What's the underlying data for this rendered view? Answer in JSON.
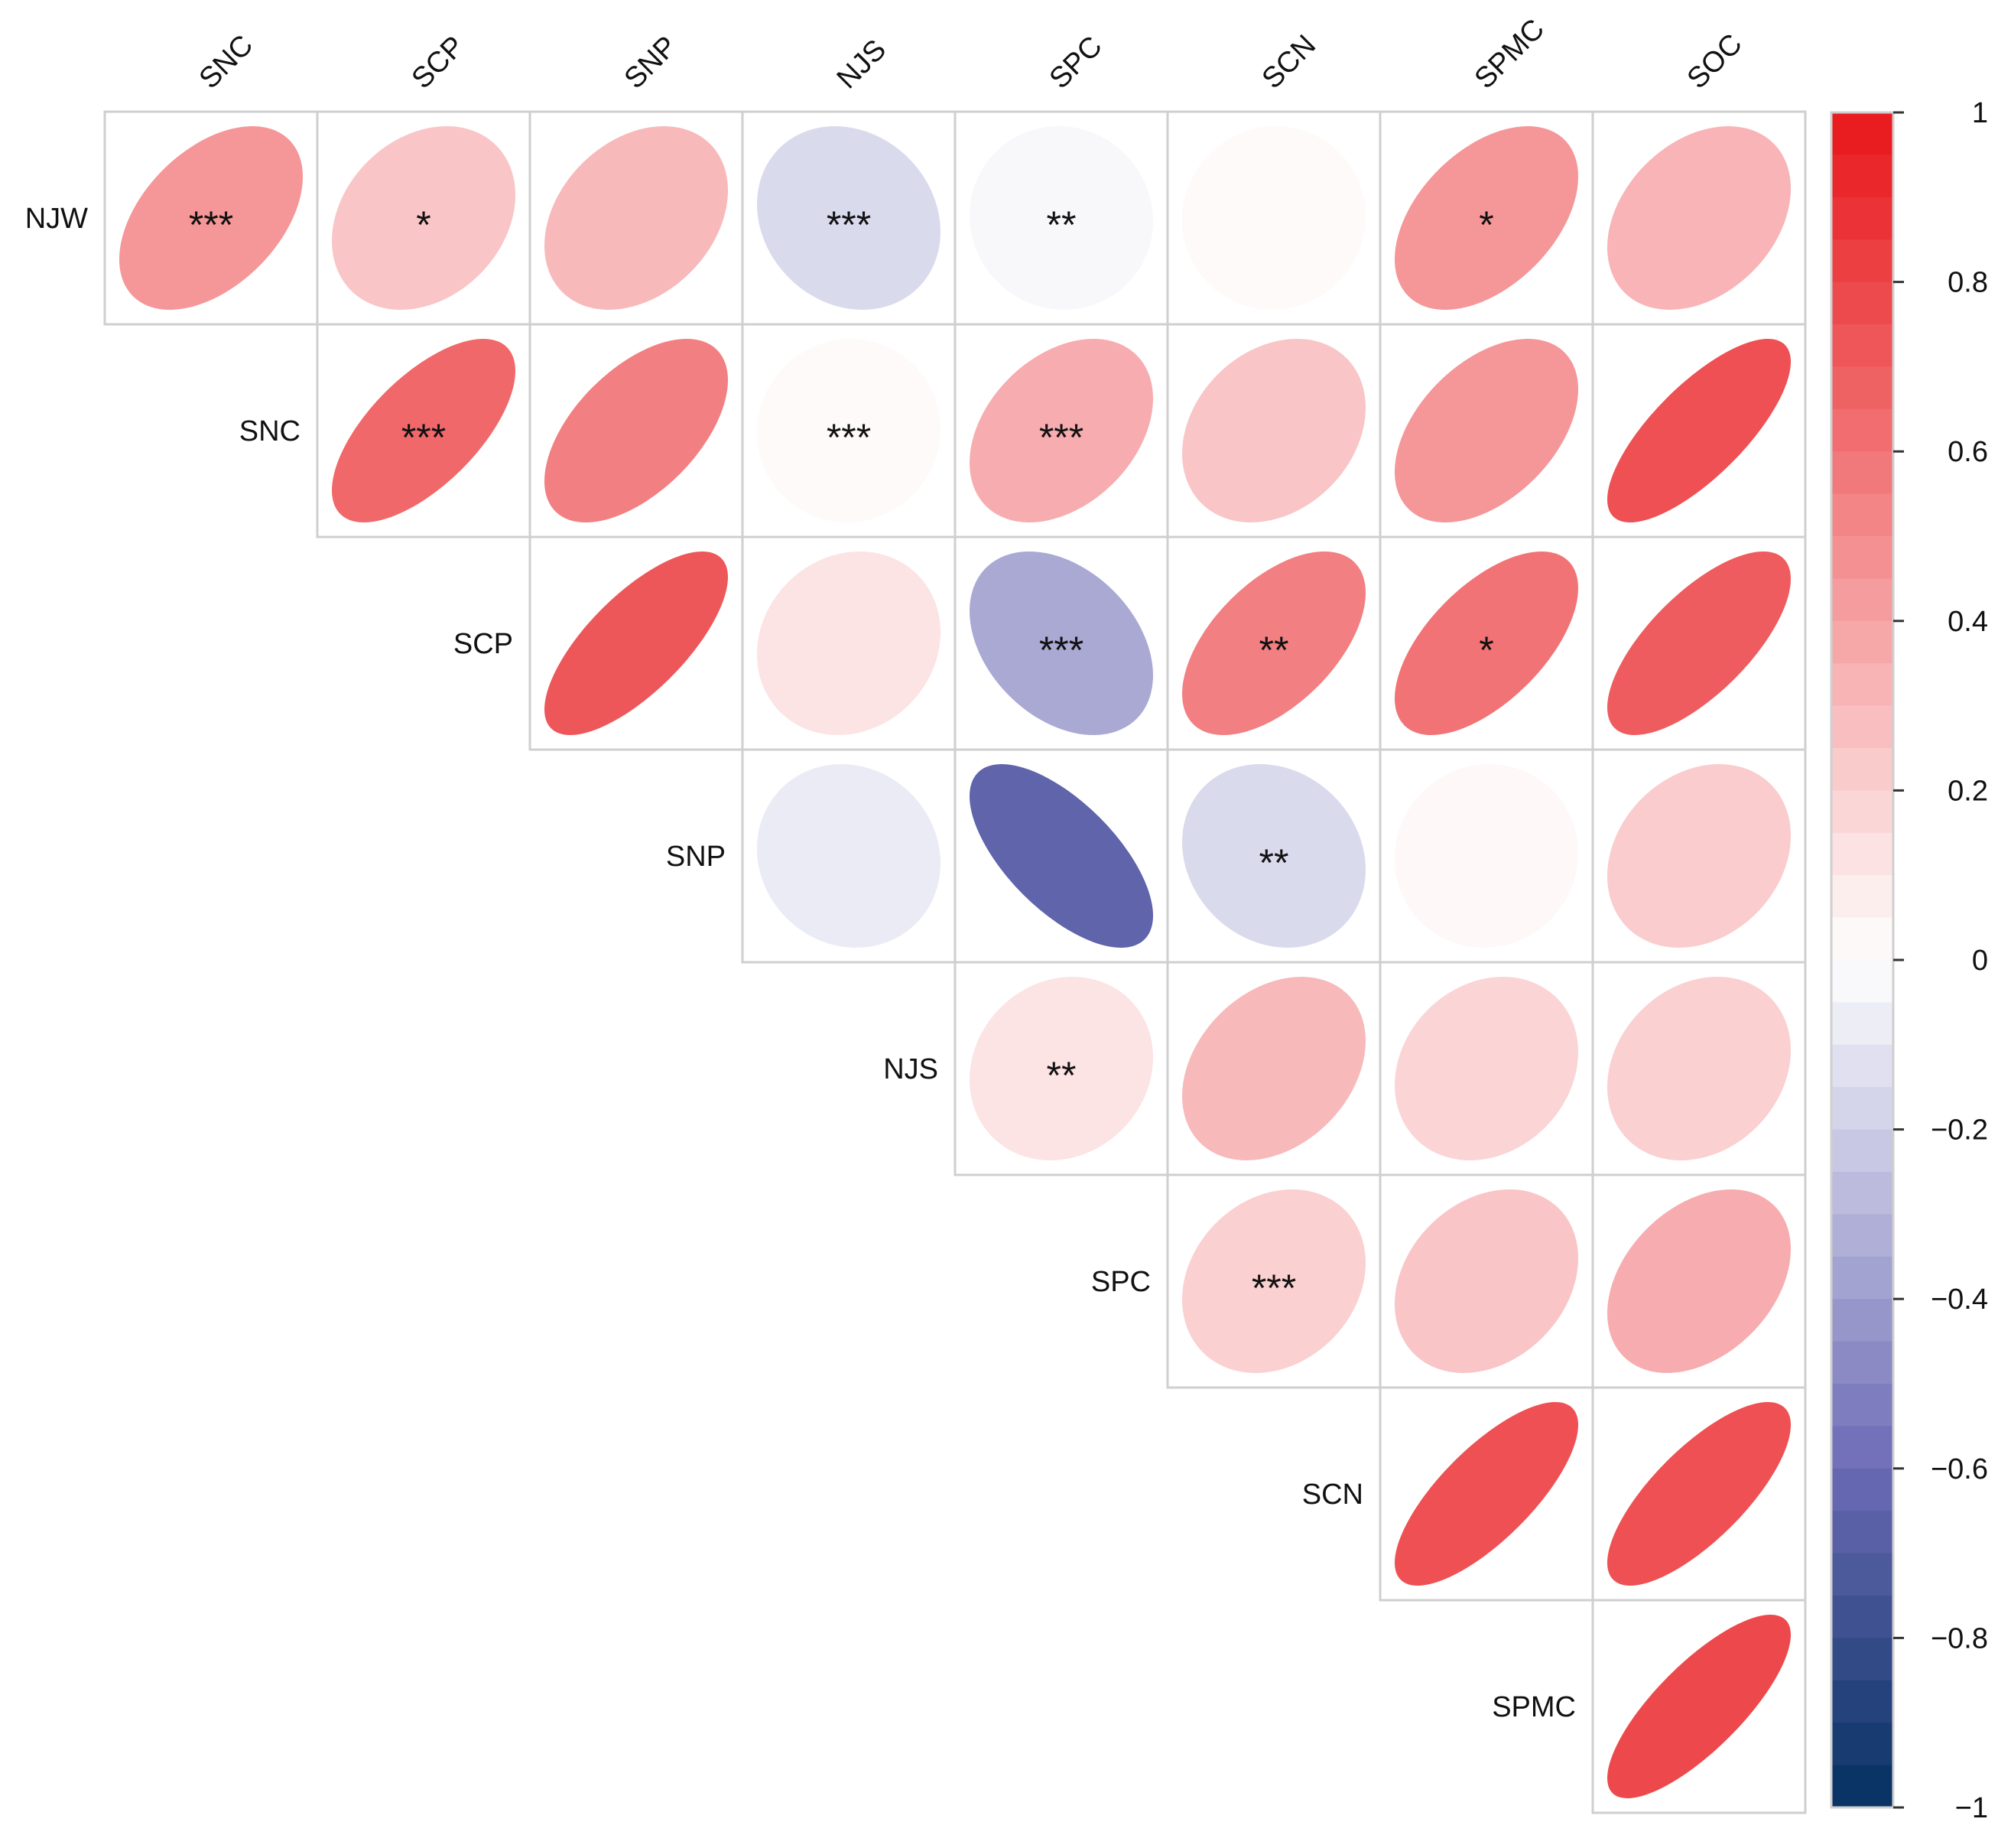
{
  "chart_data": {
    "type": "heatmap",
    "subtype": "correlation-ellipse-upper",
    "row_variables": [
      "NJW",
      "SNC",
      "SCP",
      "SNP",
      "NJS",
      "SPC",
      "SCN",
      "SPMC"
    ],
    "column_variables": [
      "SNC",
      "SCP",
      "SNP",
      "NJS",
      "SPC",
      "SCN",
      "SPMC",
      "SOC"
    ],
    "cells": [
      {
        "row": "NJW",
        "col": "SNC",
        "r": 0.45,
        "sig": "***"
      },
      {
        "row": "NJW",
        "col": "SCP",
        "r": 0.25,
        "sig": "*"
      },
      {
        "row": "NJW",
        "col": "SNP",
        "r": 0.3,
        "sig": ""
      },
      {
        "row": "NJW",
        "col": "NJS",
        "r": -0.15,
        "sig": "***"
      },
      {
        "row": "NJW",
        "col": "SPC",
        "r": -0.03,
        "sig": "**"
      },
      {
        "row": "NJW",
        "col": "SCN",
        "r": 0.02,
        "sig": ""
      },
      {
        "row": "NJW",
        "col": "SPMC",
        "r": 0.45,
        "sig": "*"
      },
      {
        "row": "NJW",
        "col": "SOC",
        "r": 0.32,
        "sig": ""
      },
      {
        "row": "SNC",
        "col": "SCP",
        "r": 0.65,
        "sig": "***"
      },
      {
        "row": "SNC",
        "col": "SNP",
        "r": 0.55,
        "sig": ""
      },
      {
        "row": "SNC",
        "col": "NJS",
        "r": 0.02,
        "sig": "***"
      },
      {
        "row": "SNC",
        "col": "SPC",
        "r": 0.35,
        "sig": "***"
      },
      {
        "row": "SNC",
        "col": "SCN",
        "r": 0.25,
        "sig": ""
      },
      {
        "row": "SNC",
        "col": "SPMC",
        "r": 0.45,
        "sig": ""
      },
      {
        "row": "SNC",
        "col": "SOC",
        "r": 0.75,
        "sig": ""
      },
      {
        "row": "SCP",
        "col": "SNP",
        "r": 0.72,
        "sig": ""
      },
      {
        "row": "SCP",
        "col": "NJS",
        "r": 0.12,
        "sig": ""
      },
      {
        "row": "SCP",
        "col": "SPC",
        "r": -0.35,
        "sig": "***"
      },
      {
        "row": "SCP",
        "col": "SCN",
        "r": 0.55,
        "sig": "**"
      },
      {
        "row": "SCP",
        "col": "SPMC",
        "r": 0.6,
        "sig": "*"
      },
      {
        "row": "SCP",
        "col": "SOC",
        "r": 0.7,
        "sig": ""
      },
      {
        "row": "SNP",
        "col": "NJS",
        "r": -0.08,
        "sig": ""
      },
      {
        "row": "SNP",
        "col": "SPC",
        "r": -0.65,
        "sig": ""
      },
      {
        "row": "SNP",
        "col": "SCN",
        "r": -0.15,
        "sig": "**"
      },
      {
        "row": "SNP",
        "col": "SPMC",
        "r": 0.03,
        "sig": ""
      },
      {
        "row": "SNP",
        "col": "SOC",
        "r": 0.22,
        "sig": ""
      },
      {
        "row": "NJS",
        "col": "SPC",
        "r": 0.12,
        "sig": "**"
      },
      {
        "row": "NJS",
        "col": "SCN",
        "r": 0.3,
        "sig": ""
      },
      {
        "row": "NJS",
        "col": "SPMC",
        "r": 0.18,
        "sig": ""
      },
      {
        "row": "NJS",
        "col": "SOC",
        "r": 0.2,
        "sig": ""
      },
      {
        "row": "SPC",
        "col": "SCN",
        "r": 0.2,
        "sig": "***"
      },
      {
        "row": "SPC",
        "col": "SPMC",
        "r": 0.25,
        "sig": ""
      },
      {
        "row": "SPC",
        "col": "SOC",
        "r": 0.35,
        "sig": ""
      },
      {
        "row": "SCN",
        "col": "SPMC",
        "r": 0.75,
        "sig": ""
      },
      {
        "row": "SCN",
        "col": "SOC",
        "r": 0.75,
        "sig": ""
      },
      {
        "row": "SPMC",
        "col": "SOC",
        "r": 0.78,
        "sig": ""
      }
    ],
    "colorbar": {
      "range": [
        -1,
        1
      ],
      "ticks": [
        1,
        0.8,
        0.6,
        0.4,
        0.2,
        0,
        -0.2,
        -0.4,
        -0.6,
        -0.8,
        -1
      ],
      "tick_labels": [
        "1",
        "0.8",
        "0.6",
        "0.4",
        "0.2",
        "0",
        "−0.2",
        "−0.4",
        "−0.6",
        "−0.8",
        "−1"
      ],
      "colors": {
        "negative": "#053061",
        "neutral": "#FFFFFF",
        "positive": "#E8161A"
      }
    }
  }
}
